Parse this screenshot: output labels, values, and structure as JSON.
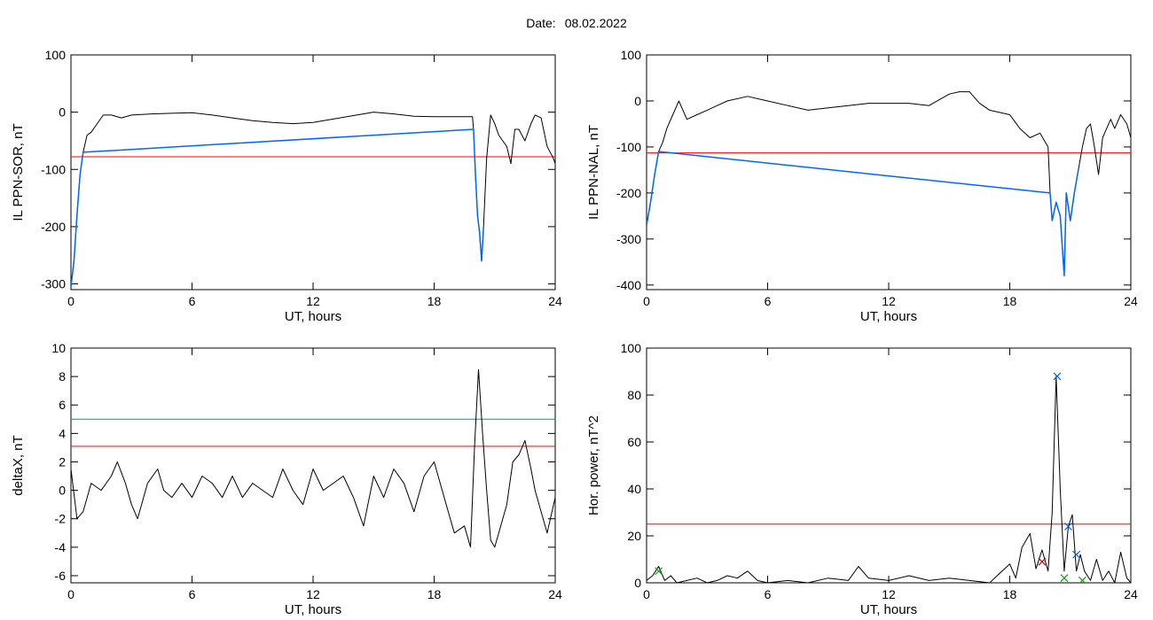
{
  "header": {
    "date_label": "Date:",
    "date_value": "08.02.2022"
  },
  "colors": {
    "threshold_red": "#ff0000",
    "threshold_teal": "#009999",
    "highlight_blue": "#0066ff",
    "marker_green": "#00aa00",
    "marker_red": "#cc0000",
    "trace": "#000000"
  },
  "chart_data": [
    {
      "id": "il-sor",
      "type": "line",
      "title": "",
      "xlabel": "UT, hours",
      "ylabel": "IL PPN-SOR, nT",
      "xlim": [
        0,
        24
      ],
      "ylim": [
        -310,
        100
      ],
      "xticks": [
        0,
        6,
        12,
        18,
        24
      ],
      "yticks": [
        100,
        0,
        -100,
        -200,
        -300
      ],
      "grid": false,
      "series": [
        {
          "color": "#000000",
          "x": [
            0,
            0.15,
            0.3,
            0.45,
            0.6,
            0.8,
            1.0,
            1.3,
            1.6,
            2.0,
            2.5,
            3,
            4,
            5,
            6,
            7,
            8,
            9,
            10,
            11,
            12,
            13,
            14,
            15,
            16,
            17,
            18,
            19,
            19.5,
            19.9,
            19.95,
            20.05,
            20.15,
            20.25,
            20.35,
            20.45,
            20.6,
            20.8,
            21.0,
            21.2,
            21.4,
            21.6,
            21.8,
            22.0,
            22.2,
            22.5,
            22.8,
            23.0,
            23.3,
            23.6,
            23.9,
            24
          ],
          "y": [
            -305,
            -260,
            -180,
            -110,
            -70,
            -40,
            -35,
            -20,
            -5,
            -5,
            -10,
            -5,
            -3,
            -2,
            -1,
            -5,
            -10,
            -15,
            -18,
            -20,
            -18,
            -12,
            -6,
            0,
            -3,
            -7,
            -8,
            -8,
            -8,
            -8,
            -30,
            -110,
            -180,
            -210,
            -260,
            -200,
            -80,
            -5,
            -20,
            -40,
            -50,
            -60,
            -90,
            -30,
            -30,
            -50,
            -20,
            -5,
            -10,
            -60,
            -80,
            -90
          ]
        },
        {
          "color": "#0066ff",
          "x": [
            0,
            0.15,
            0.3,
            0.45,
            0.6,
            19.95,
            20.05,
            20.15,
            20.25,
            20.35,
            20.45
          ],
          "y": [
            -305,
            -260,
            -180,
            -110,
            -70,
            -30,
            -110,
            -180,
            -210,
            -260,
            -200
          ]
        }
      ],
      "hlines": [
        {
          "y": -78,
          "color": "#ff0000"
        }
      ],
      "markers": []
    },
    {
      "id": "il-nal",
      "type": "line",
      "title": "",
      "xlabel": "UT, hours",
      "ylabel": "IL PPN-NAL, nT",
      "xlim": [
        0,
        24
      ],
      "ylim": [
        -410,
        100
      ],
      "xticks": [
        0,
        6,
        12,
        18,
        24
      ],
      "yticks": [
        100,
        0,
        -100,
        -200,
        -300,
        -400
      ],
      "grid": false,
      "series": [
        {
          "color": "#000000",
          "x": [
            0,
            0.2,
            0.4,
            0.6,
            0.8,
            1.0,
            1.3,
            1.6,
            2.0,
            2.5,
            3,
            3.5,
            4,
            5,
            6,
            7,
            8,
            9,
            10,
            11,
            12,
            13,
            14,
            15,
            15.5,
            16,
            16.5,
            17,
            18,
            18.5,
            19,
            19.5,
            19.9,
            20.0,
            20.1,
            20.3,
            20.5,
            20.7,
            20.8,
            21.0,
            21.2,
            21.4,
            21.6,
            21.8,
            22.0,
            22.2,
            22.4,
            22.6,
            22.8,
            23.0,
            23.2,
            23.5,
            23.8,
            24
          ],
          "y": [
            -270,
            -220,
            -160,
            -110,
            -90,
            -60,
            -30,
            0,
            -40,
            -30,
            -20,
            -10,
            0,
            10,
            0,
            -10,
            -20,
            -15,
            -10,
            -5,
            -5,
            -5,
            -10,
            15,
            20,
            20,
            -5,
            -20,
            -30,
            -60,
            -80,
            -70,
            -100,
            -200,
            -260,
            -220,
            -250,
            -380,
            -200,
            -260,
            -200,
            -150,
            -100,
            -60,
            -50,
            -100,
            -160,
            -80,
            -60,
            -40,
            -60,
            -30,
            -50,
            -80
          ]
        },
        {
          "color": "#0066ff",
          "x": [
            0,
            0.2,
            0.4,
            0.6,
            20.0,
            20.1,
            20.3,
            20.5,
            20.7,
            20.8,
            21.0,
            21.2,
            21.4
          ],
          "y": [
            -270,
            -220,
            -160,
            -110,
            -200,
            -260,
            -220,
            -250,
            -380,
            -200,
            -260,
            -200,
            -150
          ]
        }
      ],
      "hlines": [
        {
          "y": -113,
          "color": "#ff0000"
        }
      ],
      "markers": []
    },
    {
      "id": "deltax",
      "type": "line",
      "title": "",
      "xlabel": "UT, hours",
      "ylabel": "deltaX, nT",
      "xlim": [
        0,
        24
      ],
      "ylim": [
        -6.5,
        10
      ],
      "xticks": [
        0,
        6,
        12,
        18,
        24
      ],
      "yticks": [
        10,
        8,
        6,
        4,
        2,
        0,
        -2,
        -4,
        -6
      ],
      "grid": false,
      "series": [
        {
          "color": "#000000",
          "x": [
            0,
            0.3,
            0.6,
            1.0,
            1.5,
            2.0,
            2.3,
            2.7,
            3.0,
            3.3,
            3.8,
            4.3,
            4.6,
            5.0,
            5.5,
            6.0,
            6.5,
            7.0,
            7.5,
            8.0,
            8.5,
            9.0,
            9.5,
            10.0,
            10.5,
            11.0,
            11.5,
            12.0,
            12.5,
            13.0,
            13.5,
            14.0,
            14.5,
            15.0,
            15.5,
            16.0,
            16.5,
            17.0,
            17.5,
            18.0,
            18.3,
            18.7,
            19.0,
            19.5,
            19.8,
            20.0,
            20.2,
            20.4,
            20.6,
            20.8,
            21.0,
            21.3,
            21.6,
            21.9,
            22.2,
            22.5,
            22.8,
            23.0,
            23.3,
            23.6,
            24
          ],
          "y": [
            1.5,
            -2.0,
            -1.5,
            0.5,
            0.0,
            1.0,
            2.0,
            0.5,
            -1.0,
            -2.0,
            0.5,
            1.5,
            0.0,
            -0.5,
            0.5,
            -0.5,
            1.0,
            0.5,
            -0.5,
            1.0,
            -0.5,
            0.5,
            0.0,
            -0.5,
            1.5,
            0.0,
            -1.0,
            1.5,
            0.0,
            0.5,
            1.0,
            -0.5,
            -2.5,
            1.0,
            -0.5,
            1.5,
            0.5,
            -1.5,
            1.0,
            2.0,
            0.5,
            -1.5,
            -3.0,
            -2.5,
            -4.0,
            3.0,
            8.5,
            4.0,
            0.0,
            -3.5,
            -4.0,
            -2.5,
            -1.0,
            2.0,
            2.5,
            3.5,
            1.5,
            0.0,
            -1.5,
            -3.0,
            -0.5
          ]
        }
      ],
      "hlines": [
        {
          "y": 5.0,
          "color": "#009999"
        },
        {
          "y": 3.1,
          "color": "#ff0000"
        }
      ],
      "markers": []
    },
    {
      "id": "hor-power",
      "type": "line",
      "title": "",
      "xlabel": "UT, hours",
      "ylabel": "Hor. power, nT^2",
      "xlim": [
        0,
        24
      ],
      "ylim": [
        0,
        100
      ],
      "xticks": [
        0,
        6,
        12,
        18,
        24
      ],
      "yticks": [
        100,
        80,
        60,
        40,
        20,
        0
      ],
      "grid": false,
      "series": [
        {
          "color": "#000000",
          "x": [
            0,
            0.3,
            0.6,
            0.9,
            1.2,
            1.5,
            2,
            2.5,
            3,
            3.5,
            4,
            4.5,
            5,
            5.5,
            6,
            7,
            8,
            9,
            10,
            10.5,
            11,
            12,
            13,
            14,
            15,
            16,
            17,
            17.5,
            18,
            18.3,
            18.6,
            19.0,
            19.3,
            19.6,
            19.9,
            20.1,
            20.3,
            20.5,
            20.7,
            20.9,
            21.1,
            21.3,
            21.5,
            21.7,
            22.0,
            22.3,
            22.6,
            22.9,
            23.2,
            23.5,
            23.8,
            24
          ],
          "y": [
            1,
            3,
            7,
            1,
            3,
            0,
            1,
            2,
            0,
            1,
            3,
            2,
            5,
            1,
            0,
            1,
            0,
            2,
            1,
            7,
            2,
            1,
            3,
            1,
            2,
            1,
            0,
            4,
            8,
            2,
            15,
            21,
            6,
            14,
            5,
            30,
            88,
            40,
            5,
            24,
            29,
            5,
            12,
            5,
            1,
            10,
            1,
            5,
            0,
            13,
            2,
            0
          ]
        }
      ],
      "hlines": [
        {
          "y": 25,
          "color": "#ff0000"
        }
      ],
      "markers": [
        {
          "x": 20.35,
          "y": 88,
          "color": "#0066ff"
        },
        {
          "x": 21.3,
          "y": 12,
          "color": "#0066ff"
        },
        {
          "x": 20.9,
          "y": 24,
          "color": "#0066ff"
        },
        {
          "x": 19.6,
          "y": 9,
          "color": "#cc0000"
        },
        {
          "x": 0.6,
          "y": 5,
          "color": "#00aa00"
        },
        {
          "x": 20.7,
          "y": 2,
          "color": "#00aa00"
        },
        {
          "x": 21.6,
          "y": 1,
          "color": "#00aa00"
        }
      ]
    }
  ]
}
